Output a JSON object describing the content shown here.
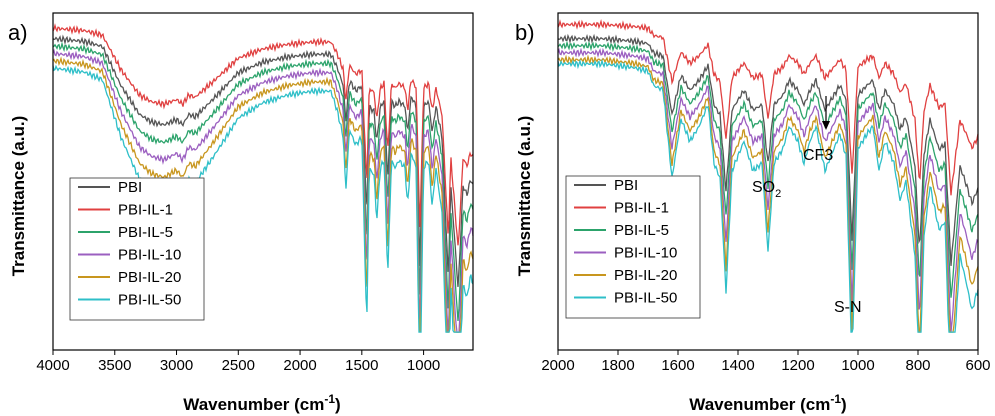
{
  "chart_data": [
    {
      "type": "line",
      "panel_label": "a)",
      "xlabel": "Wavenumber (cm",
      "xlabel_sup": "-1",
      "xlabel_end": ")",
      "ylabel": "Transmittance (a.u.)",
      "xlim": [
        4000,
        600
      ],
      "xticks": [
        4000,
        3500,
        3000,
        2500,
        2000,
        1500,
        1000
      ],
      "xtick_labels": [
        "4000",
        "3500",
        "3000",
        "2500",
        "2000",
        "1500",
        "1000"
      ],
      "y_ticks_shown": false,
      "legend_position": "bottom-left",
      "series": [
        {
          "name": "PBI",
          "color": "#555555",
          "offset": 0.03,
          "scale": 0.85
        },
        {
          "name": "PBI-IL-1",
          "color": "#e04040",
          "offset": 0.0,
          "scale": 0.75
        },
        {
          "name": "PBI-IL-5",
          "color": "#2ca36b",
          "offset": 0.05,
          "scale": 0.95
        },
        {
          "name": "PBI-IL-10",
          "color": "#9b5fc0",
          "offset": 0.07,
          "scale": 1.05
        },
        {
          "name": "PBI-IL-20",
          "color": "#c8961e",
          "offset": 0.09,
          "scale": 1.15
        },
        {
          "name": "PBI-IL-50",
          "color": "#2ebfc8",
          "offset": 0.11,
          "scale": 1.25
        }
      ],
      "baseline": [
        [
          4000,
          0.04
        ],
        [
          3750,
          0.05
        ],
        [
          3600,
          0.07
        ],
        [
          3450,
          0.22
        ],
        [
          3300,
          0.33
        ],
        [
          3200,
          0.36
        ],
        [
          3100,
          0.37
        ],
        [
          3000,
          0.35
        ],
        [
          2950,
          0.37
        ],
        [
          2900,
          0.33
        ],
        [
          2850,
          0.34
        ],
        [
          2700,
          0.27
        ],
        [
          2500,
          0.17
        ],
        [
          2300,
          0.13
        ],
        [
          2100,
          0.11
        ],
        [
          1900,
          0.1
        ],
        [
          1750,
          0.1
        ],
        [
          1700,
          0.15
        ],
        [
          1650,
          0.22
        ],
        [
          1630,
          0.36
        ],
        [
          1600,
          0.2
        ],
        [
          1550,
          0.24
        ],
        [
          1500,
          0.22
        ],
        [
          1460,
          0.72
        ],
        [
          1440,
          0.3
        ],
        [
          1400,
          0.32
        ],
        [
          1380,
          0.44
        ],
        [
          1350,
          0.3
        ],
        [
          1320,
          0.28
        ],
        [
          1290,
          0.58
        ],
        [
          1260,
          0.28
        ],
        [
          1230,
          0.3
        ],
        [
          1200,
          0.28
        ],
        [
          1150,
          0.3
        ],
        [
          1130,
          0.4
        ],
        [
          1100,
          0.26
        ],
        [
          1060,
          0.3
        ],
        [
          1030,
          0.92
        ],
        [
          1000,
          0.3
        ],
        [
          960,
          0.28
        ],
        [
          930,
          0.4
        ],
        [
          900,
          0.3
        ],
        [
          850,
          0.42
        ],
        [
          800,
          0.96
        ],
        [
          780,
          0.6
        ],
        [
          720,
          1.0
        ],
        [
          680,
          0.6
        ],
        [
          650,
          0.64
        ],
        [
          620,
          0.58
        ],
        [
          600,
          0.6
        ]
      ]
    },
    {
      "type": "line",
      "panel_label": "b)",
      "xlabel": "Wavenumber (cm",
      "xlabel_sup": "-1",
      "xlabel_end": ")",
      "ylabel": "Transmittance (a.u.)",
      "xlim": [
        2000,
        600
      ],
      "xticks": [
        2000,
        1800,
        1600,
        1400,
        1200,
        1000,
        800,
        600
      ],
      "xtick_labels": [
        "2000",
        "1800",
        "1600",
        "1400",
        "1200",
        "1000",
        "800",
        "600"
      ],
      "y_ticks_shown": false,
      "legend_position": "bottom-left",
      "annotations": [
        {
          "text": "SO",
          "sub": "2",
          "x": 1320
        },
        {
          "text": "CF3",
          "x": 1090
        },
        {
          "text": "S-N",
          "x": 1010
        }
      ],
      "series": [
        {
          "name": "PBI",
          "color": "#555555",
          "offset": 0.04,
          "scale": 0.8
        },
        {
          "name": "PBI-IL-1",
          "color": "#e04040",
          "offset": 0.0,
          "scale": 0.6
        },
        {
          "name": "PBI-IL-5",
          "color": "#2ca36b",
          "offset": 0.06,
          "scale": 0.9
        },
        {
          "name": "PBI-IL-10",
          "color": "#9b5fc0",
          "offset": 0.08,
          "scale": 1.0
        },
        {
          "name": "PBI-IL-20",
          "color": "#c8961e",
          "offset": 0.1,
          "scale": 1.1
        },
        {
          "name": "PBI-IL-50",
          "color": "#2ebfc8",
          "offset": 0.11,
          "scale": 1.2
        }
      ],
      "baseline": [
        [
          2000,
          0.03
        ],
        [
          1850,
          0.03
        ],
        [
          1750,
          0.04
        ],
        [
          1700,
          0.05
        ],
        [
          1680,
          0.09
        ],
        [
          1650,
          0.1
        ],
        [
          1620,
          0.34
        ],
        [
          1590,
          0.18
        ],
        [
          1560,
          0.24
        ],
        [
          1530,
          0.2
        ],
        [
          1500,
          0.14
        ],
        [
          1480,
          0.3
        ],
        [
          1460,
          0.34
        ],
        [
          1440,
          0.65
        ],
        [
          1420,
          0.32
        ],
        [
          1400,
          0.28
        ],
        [
          1380,
          0.24
        ],
        [
          1350,
          0.32
        ],
        [
          1320,
          0.3
        ],
        [
          1300,
          0.54
        ],
        [
          1280,
          0.3
        ],
        [
          1250,
          0.26
        ],
        [
          1230,
          0.2
        ],
        [
          1200,
          0.24
        ],
        [
          1180,
          0.3
        ],
        [
          1160,
          0.24
        ],
        [
          1140,
          0.2
        ],
        [
          1110,
          0.32
        ],
        [
          1090,
          0.28
        ],
        [
          1060,
          0.22
        ],
        [
          1040,
          0.28
        ],
        [
          1020,
          0.85
        ],
        [
          1000,
          0.26
        ],
        [
          970,
          0.22
        ],
        [
          950,
          0.2
        ],
        [
          930,
          0.32
        ],
        [
          910,
          0.24
        ],
        [
          880,
          0.3
        ],
        [
          860,
          0.4
        ],
        [
          840,
          0.35
        ],
        [
          810,
          0.55
        ],
        [
          795,
          0.9
        ],
        [
          780,
          0.5
        ],
        [
          760,
          0.36
        ],
        [
          730,
          0.48
        ],
        [
          710,
          0.46
        ],
        [
          690,
          0.95
        ],
        [
          660,
          0.55
        ],
        [
          640,
          0.62
        ],
        [
          620,
          0.7
        ],
        [
          600,
          0.64
        ]
      ]
    }
  ]
}
